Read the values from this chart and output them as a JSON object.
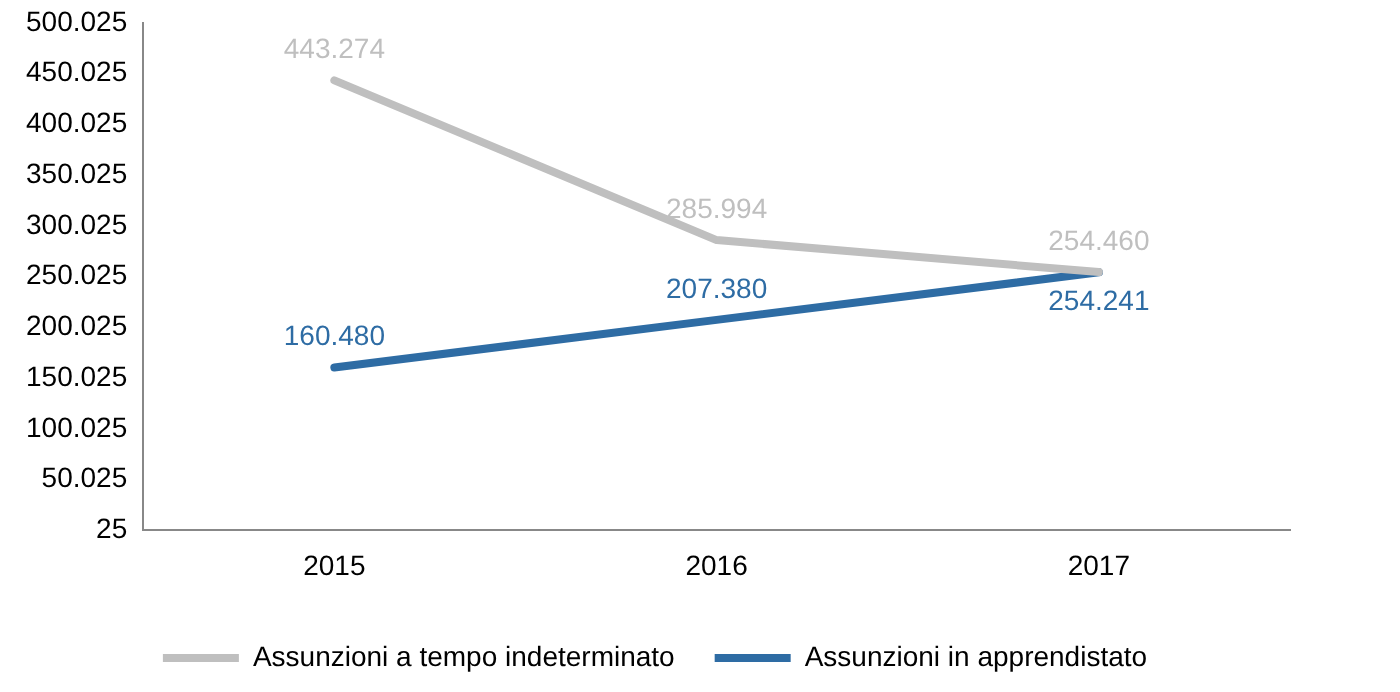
{
  "chart_data": {
    "type": "line",
    "categories": [
      "2015",
      "2016",
      "2017"
    ],
    "series": [
      {
        "name": "Assunzioni a tempo indeterminato",
        "color": "#bfbfbf",
        "values": [
          443274,
          285994,
          254460
        ],
        "value_labels": [
          "443.274",
          "285.994",
          "254.460"
        ]
      },
      {
        "name": "Assunzioni in apprendistato",
        "color": "#2e6ca4",
        "values": [
          160480,
          207380,
          254241
        ],
        "value_labels": [
          "160.480",
          "207.380",
          "254.241"
        ]
      }
    ],
    "ylim": [
      25,
      500025
    ],
    "yticks": [
      {
        "value": 25,
        "label": "25"
      },
      {
        "value": 50025,
        "label": "50.025"
      },
      {
        "value": 100025,
        "label": "100.025"
      },
      {
        "value": 150025,
        "label": "150.025"
      },
      {
        "value": 200025,
        "label": "200.025"
      },
      {
        "value": 250025,
        "label": "250.025"
      },
      {
        "value": 300025,
        "label": "300.025"
      },
      {
        "value": 350025,
        "label": "350.025"
      },
      {
        "value": 400025,
        "label": "400.025"
      },
      {
        "value": 450025,
        "label": "450.025"
      },
      {
        "value": 500025,
        "label": "500.025"
      }
    ],
    "grid": false,
    "legend": "bottom",
    "marker": "none",
    "line_style": "solid"
  }
}
